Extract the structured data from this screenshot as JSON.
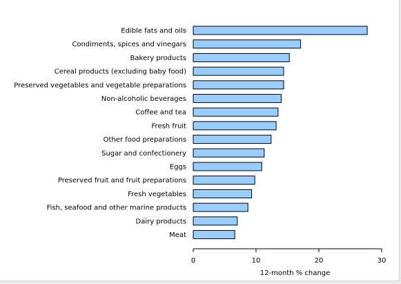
{
  "chart_data": {
    "type": "bar",
    "orientation": "horizontal",
    "categories": [
      "Edible fats and oils",
      "Condiments, spices and vinegars",
      "Bakery products",
      "Cereal products (excluding baby food)",
      "Preserved vegetables and vegetable preparations",
      "Non-alcoholic beverages",
      "Coffee and tea",
      "Fresh fruit",
      "Other food preparations",
      "Sugar and confectionery",
      "Eggs",
      "Preserved fruit and fruit preparations",
      "Fresh vegetables",
      "Fish, seafood and other marine products",
      "Dairy products",
      "Meat"
    ],
    "values": [
      27.7,
      17.1,
      15.3,
      14.4,
      14.4,
      14.0,
      13.5,
      13.2,
      12.4,
      11.3,
      10.9,
      9.8,
      9.3,
      8.7,
      7.0,
      6.6
    ],
    "xlabel": "12-month % change",
    "ylabel": "",
    "xlim": [
      0,
      30
    ],
    "xticks": [
      0,
      10,
      20,
      30
    ],
    "grid": false,
    "legend": "none",
    "bar_color": "#99ccff",
    "bar_edge_color": "#000000"
  }
}
